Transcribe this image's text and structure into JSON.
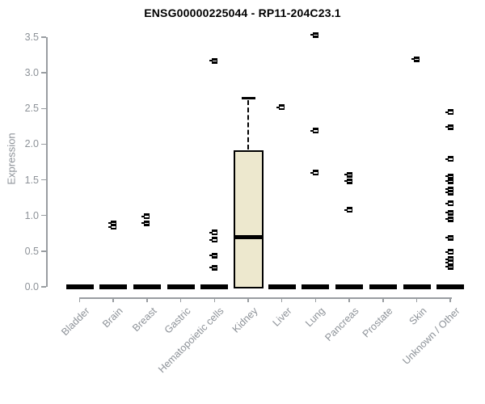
{
  "title": "ENSG00000225044 - RP11-204C23.1",
  "chart_data": {
    "type": "boxplot",
    "title": "ENSG00000225044 - RP11-204C23.1",
    "xlabel": "",
    "ylabel": "Expression",
    "ylim": [
      0,
      3.5
    ],
    "yticks": [
      0,
      0.5,
      1,
      1.5,
      2,
      2.5,
      3,
      3.5
    ],
    "ytick_labels": [
      "0.0",
      "0.5",
      "1.0",
      "1.5",
      "2.0",
      "2.5",
      "3.0",
      "3.5"
    ],
    "grid": false,
    "legend": "none",
    "categories": [
      "Bladder",
      "Brain",
      "Breast",
      "Gastric",
      "Hematopoietic cells",
      "Kidney",
      "Liver",
      "Lung",
      "Pancreas",
      "Prostate",
      "Skin",
      "Unknown / Other"
    ],
    "boxes": [
      {
        "category": "Bladder",
        "q1": 0,
        "median": 0,
        "q3": 0,
        "whisker_low": 0,
        "whisker_high": 0,
        "outliers": []
      },
      {
        "category": "Brain",
        "q1": 0,
        "median": 0,
        "q3": 0,
        "whisker_low": 0,
        "whisker_high": 0,
        "outliers": [
          0.89,
          0.84
        ]
      },
      {
        "category": "Breast",
        "q1": 0,
        "median": 0,
        "q3": 0,
        "whisker_low": 0,
        "whisker_high": 0,
        "outliers": [
          0.99,
          0.89
        ]
      },
      {
        "category": "Gastric",
        "q1": 0,
        "median": 0,
        "q3": 0,
        "whisker_low": 0,
        "whisker_high": 0,
        "outliers": []
      },
      {
        "category": "Hematopoietic cells",
        "q1": 0,
        "median": 0,
        "q3": 0,
        "whisker_low": 0,
        "whisker_high": 0,
        "outliers": [
          3.17,
          0.76,
          0.66,
          0.44,
          0.27
        ]
      },
      {
        "category": "Kidney",
        "q1": 0,
        "median": 0.7,
        "q3": 1.91,
        "whisker_low": 0,
        "whisker_high": 2.64,
        "outliers": []
      },
      {
        "category": "Liver",
        "q1": 0,
        "median": 0,
        "q3": 0,
        "whisker_low": 0,
        "whisker_high": 0,
        "outliers": [
          2.52
        ]
      },
      {
        "category": "Lung",
        "q1": 0,
        "median": 0,
        "q3": 0,
        "whisker_low": 0,
        "whisker_high": 0,
        "outliers": [
          3.53,
          2.19,
          1.6
        ]
      },
      {
        "category": "Pancreas",
        "q1": 0,
        "median": 0,
        "q3": 0,
        "whisker_low": 0,
        "whisker_high": 0,
        "outliers": [
          1.57,
          1.48,
          1.08
        ]
      },
      {
        "category": "Prostate",
        "q1": 0,
        "median": 0,
        "q3": 0,
        "whisker_low": 0,
        "whisker_high": 0,
        "outliers": []
      },
      {
        "category": "Skin",
        "q1": 0,
        "median": 0,
        "q3": 0,
        "whisker_low": 0,
        "whisker_high": 0,
        "outliers": [
          3.19
        ]
      },
      {
        "category": "Unknown / Other",
        "q1": 0,
        "median": 0,
        "q3": 0,
        "whisker_low": 0,
        "whisker_high": 0,
        "outliers": [
          2.45,
          2.24,
          1.79,
          1.55,
          1.48,
          1.37,
          1.32,
          1.17,
          1.04,
          0.95,
          0.69,
          0.49,
          0.39,
          0.34,
          0.28
        ]
      }
    ],
    "colors": {
      "box_fill": "#EDE8CE",
      "box_border": "#000000",
      "median": "#000000",
      "axis": "#999da1",
      "tick_label": "#8d9298",
      "title": "#000000",
      "background": "#ffffff"
    }
  }
}
